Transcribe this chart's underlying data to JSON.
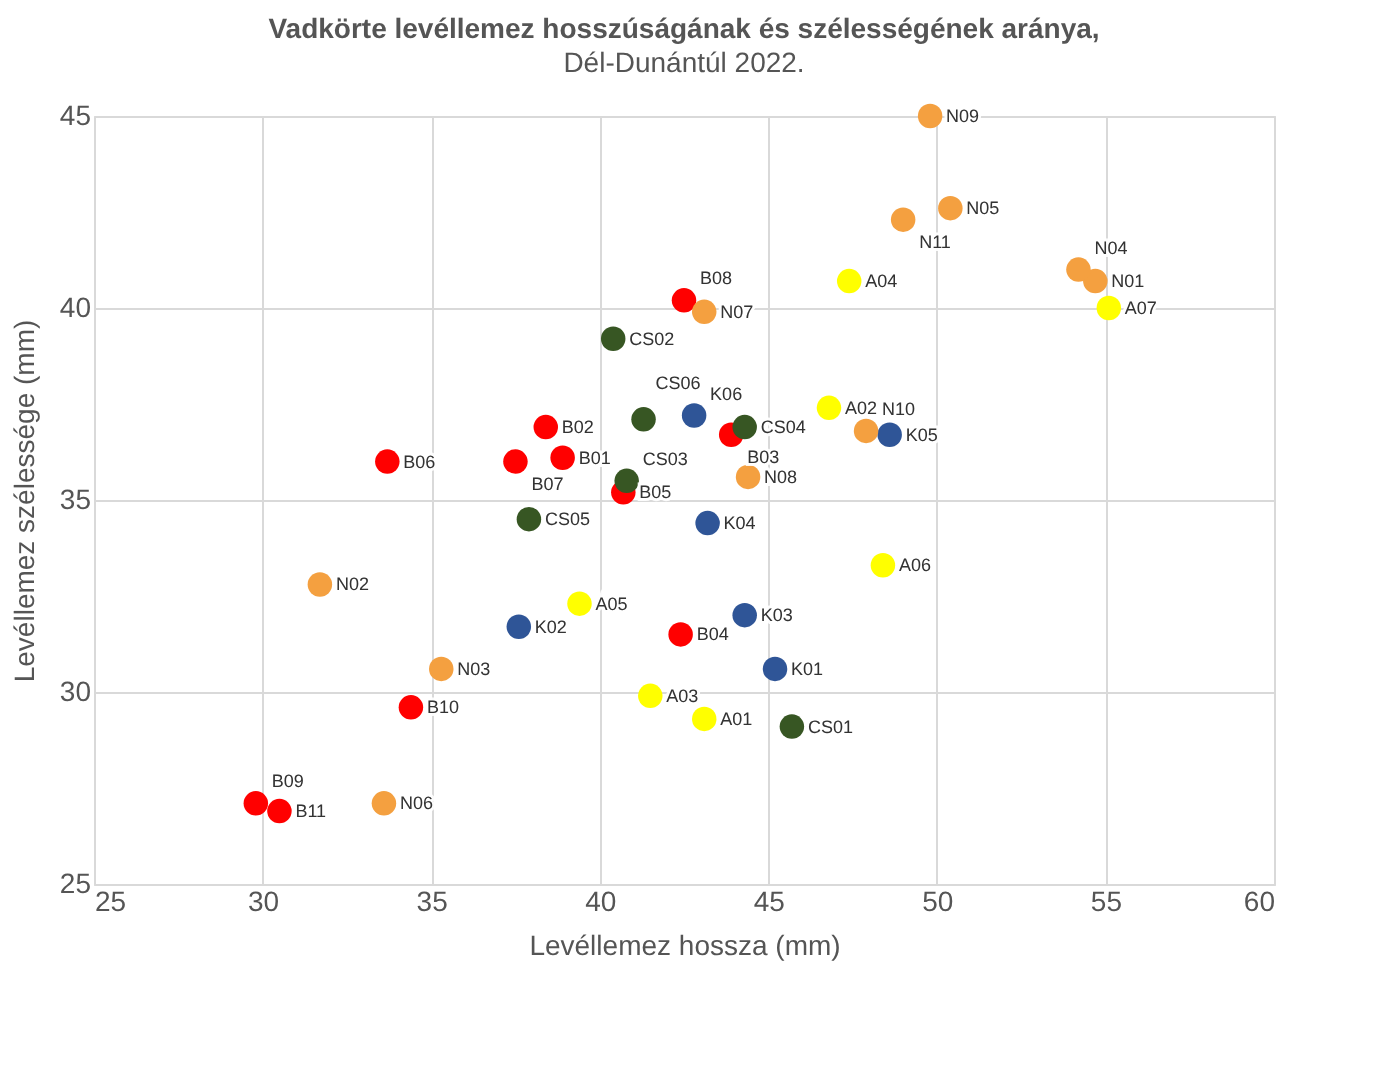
{
  "chart_data": {
    "type": "scatter",
    "title": "Vadkörte levéllemez hosszúságának és szélességének aránya,",
    "subtitle": "Dél-Dunántúl 2022.",
    "xlabel": "Levéllemez hossza (mm)",
    "ylabel": "Levéllemez szélessége (mm)",
    "xlim": [
      25,
      60
    ],
    "xticks": [
      25,
      30,
      35,
      40,
      45,
      50,
      55,
      60
    ],
    "ylim": [
      25,
      45
    ],
    "yticks": [
      25,
      30,
      35,
      40,
      45
    ],
    "grid": true,
    "legend": false,
    "marker": "circle",
    "series": [
      {
        "color": "#ffff00",
        "x": [
          43.1,
          46.8,
          41.5,
          47.4,
          39.4,
          48.4,
          55.1
        ],
        "values": [
          29.3,
          37.4,
          29.9,
          40.7,
          32.3,
          33.3,
          40.0
        ]
      },
      {
        "color": "#ff0000",
        "x": [
          38.9,
          38.4,
          43.9,
          42.4,
          40.7,
          33.7,
          37.5,
          42.5,
          29.8,
          34.4,
          30.5
        ],
        "values": [
          36.1,
          36.9,
          36.7,
          31.5,
          35.2,
          36.0,
          36.0,
          40.2,
          27.1,
          29.6,
          26.9
        ]
      },
      {
        "color": "#375623",
        "x": [
          45.7,
          40.4,
          40.8,
          44.3,
          37.9,
          41.3
        ],
        "values": [
          29.1,
          39.2,
          35.5,
          36.9,
          34.5,
          37.1
        ]
      },
      {
        "color": "#2f5597",
        "x": [
          45.2,
          37.6,
          44.3,
          43.2,
          48.6,
          42.8
        ],
        "values": [
          30.6,
          31.7,
          32.0,
          34.4,
          36.7,
          37.2
        ]
      },
      {
        "color": "#f4a040",
        "x": [
          54.7,
          31.7,
          35.3,
          54.2,
          50.4,
          33.6,
          43.1,
          44.4,
          49.8,
          47.9,
          49.0
        ],
        "values": [
          40.7,
          32.8,
          30.6,
          41.0,
          42.6,
          27.1,
          39.9,
          35.6,
          45.0,
          36.8,
          42.3
        ]
      }
    ],
    "annotations": [
      {
        "text": "A01",
        "x": 43.1,
        "y": 29.3
      },
      {
        "text": "A02",
        "x": 46.8,
        "y": 37.4
      },
      {
        "text": "A03",
        "x": 41.5,
        "y": 29.9
      },
      {
        "text": "A04",
        "x": 47.4,
        "y": 40.7
      },
      {
        "text": "A05",
        "x": 39.4,
        "y": 32.3
      },
      {
        "text": "A06",
        "x": 48.4,
        "y": 33.3
      },
      {
        "text": "A07",
        "x": 55.1,
        "y": 40.0
      },
      {
        "text": "B01",
        "x": 38.9,
        "y": 36.1
      },
      {
        "text": "B02",
        "x": 38.4,
        "y": 36.9
      },
      {
        "text": "B03",
        "x": 43.9,
        "y": 36.7
      },
      {
        "text": "B04",
        "x": 42.4,
        "y": 31.5
      },
      {
        "text": "B05",
        "x": 40.7,
        "y": 35.2
      },
      {
        "text": "B06",
        "x": 33.7,
        "y": 36.0
      },
      {
        "text": "B07",
        "x": 37.5,
        "y": 36.0
      },
      {
        "text": "B08",
        "x": 42.5,
        "y": 40.2
      },
      {
        "text": "B09",
        "x": 29.8,
        "y": 27.1
      },
      {
        "text": "B10",
        "x": 34.4,
        "y": 29.6
      },
      {
        "text": "B11",
        "x": 30.5,
        "y": 26.9
      },
      {
        "text": "CS01",
        "x": 45.7,
        "y": 29.1
      },
      {
        "text": "CS02",
        "x": 40.4,
        "y": 39.2
      },
      {
        "text": "CS03",
        "x": 40.8,
        "y": 35.5
      },
      {
        "text": "CS04",
        "x": 44.3,
        "y": 36.9
      },
      {
        "text": "CS05",
        "x": 37.9,
        "y": 34.5
      },
      {
        "text": "CS06",
        "x": 41.3,
        "y": 37.1
      },
      {
        "text": "K01",
        "x": 45.2,
        "y": 30.6
      },
      {
        "text": "K02",
        "x": 37.6,
        "y": 31.7
      },
      {
        "text": "K03",
        "x": 44.3,
        "y": 32.0
      },
      {
        "text": "K04",
        "x": 43.2,
        "y": 34.4
      },
      {
        "text": "K05",
        "x": 48.6,
        "y": 36.7
      },
      {
        "text": "K06",
        "x": 42.8,
        "y": 37.2
      },
      {
        "text": "N01",
        "x": 54.7,
        "y": 40.7
      },
      {
        "text": "N02",
        "x": 31.7,
        "y": 32.8
      },
      {
        "text": "N03",
        "x": 35.3,
        "y": 30.6
      },
      {
        "text": "N04",
        "x": 54.2,
        "y": 41.0
      },
      {
        "text": "N05",
        "x": 50.4,
        "y": 42.6
      },
      {
        "text": "N06",
        "x": 33.6,
        "y": 27.1
      },
      {
        "text": "N07",
        "x": 43.1,
        "y": 39.9
      },
      {
        "text": "N08",
        "x": 44.4,
        "y": 35.6
      },
      {
        "text": "N09",
        "x": 49.8,
        "y": 45.0
      },
      {
        "text": "N10",
        "x": 47.9,
        "y": 36.8
      },
      {
        "text": "N11",
        "x": 49.0,
        "y": 42.3
      }
    ]
  }
}
